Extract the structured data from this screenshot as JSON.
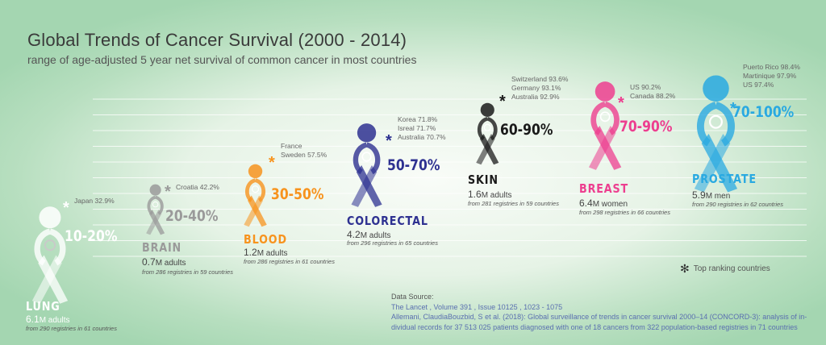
{
  "title": "Global Trends of Cancer Survival (2000 - 2014)",
  "subtitle": "range of age-adjusted 5 year net survival of common cancer in most countries",
  "chart_data": {
    "type": "bar",
    "title": "Global Trends of Cancer Survival (2000 - 2014)",
    "subtitle": "range of age-adjusted 5 year net survival of common cancer in most countries",
    "ylim": [
      0,
      100
    ],
    "series": [
      {
        "cancer": "LUNG",
        "range": "10-20%",
        "low": 10,
        "high": 20,
        "color": "#ffffff",
        "cases_num": "6.1",
        "cases_unit": "M adults",
        "registries": "from 290 registries in 61 countries",
        "top_countries": [
          "Japan 32.9%"
        ],
        "icon": "lungs-icon"
      },
      {
        "cancer": "BRAIN",
        "range": "20-40%",
        "low": 20,
        "high": 40,
        "color": "#9a9a9a",
        "cases_num": "0.7",
        "cases_unit": "M adults",
        "registries": "from 286 registries in 59 countries",
        "top_countries": [
          "Croatia 42.2%"
        ],
        "icon": "brain-icon"
      },
      {
        "cancer": "BLOOD",
        "range": "30-50%",
        "low": 30,
        "high": 50,
        "color": "#f7931e",
        "cases_num": "1.2",
        "cases_unit": "M adults",
        "registries": "from 286 registries in 61 countries",
        "top_countries": [
          "France",
          "Sweden 57.5%"
        ],
        "icon": "blood-drop-icon"
      },
      {
        "cancer": "COLORECTAL",
        "range": "50-70%",
        "low": 50,
        "high": 70,
        "color": "#2e3191",
        "cases_num": "4.2",
        "cases_unit": "M adults",
        "registries": "from 296 registries in 65 countries",
        "top_countries": [
          "Korea 71.8%",
          "Isreal 71.7%",
          "Australia 70.7%"
        ],
        "icon": "intestine-icon"
      },
      {
        "cancer": "SKIN",
        "range": "60-90%",
        "low": 60,
        "high": 90,
        "color": "#1a1a1a",
        "cases_num": "1.6",
        "cases_unit": "M adults",
        "registries": "from 281 registries in 59 countries",
        "top_countries": [
          "Switzerland 93.6%",
          "Germany 93.1%",
          "Australia 92.9%"
        ],
        "icon": "skin-icon"
      },
      {
        "cancer": "BREAST",
        "range": "70-90%",
        "low": 70,
        "high": 90,
        "color": "#ed3e8f",
        "cases_num": "6.4",
        "cases_unit": "M women",
        "registries": "from 298 registries in 66 countries",
        "top_countries": [
          "US 90.2%",
          "Canada 88.2%"
        ],
        "icon": "breast-icon"
      },
      {
        "cancer": "PROSTATE",
        "range": "70-100%",
        "low": 70,
        "high": 100,
        "color": "#29a9e1",
        "cases_num": "5.9",
        "cases_unit": "M  men",
        "registries": "from 290 registries in 62 countries",
        "top_countries": [
          "Puerto Rico 98.4%",
          "Martinique 97.9%",
          "US 97.4%"
        ],
        "icon": "prostate-icon"
      }
    ]
  },
  "legend": {
    "label": "Top ranking countries",
    "icon": "asterisk-icon"
  },
  "source": {
    "label": "Data Source:",
    "line1": "The Lancet , Volume 391 , Issue 10125 , 1023 - 1075",
    "line2": "Allemani, ClaudiaBouzbid, S et al.  (2018): Global surveillance of trends in cancer survival 2000–14 (CONCORD-3): analysis of in-",
    "line3": "dividual records for 37 513 025 patients diagnosed with one of 18 cancers from 322 population-based registries in 71 countries"
  }
}
